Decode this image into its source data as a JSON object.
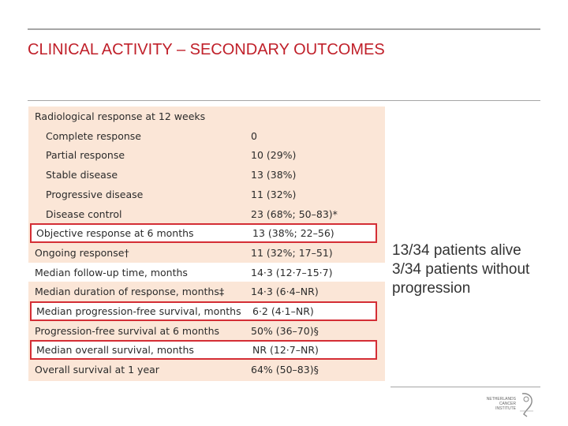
{
  "slide": {
    "title": "CLINICAL ACTIVITY – SECONDARY OUTCOMES"
  },
  "table": {
    "rows": [
      {
        "label": "Radiological response at 12 weeks",
        "value": ""
      },
      {
        "label": "Complete response",
        "value": "0"
      },
      {
        "label": "Partial response",
        "value": "10 (29%)"
      },
      {
        "label": "Stable disease",
        "value": "13 (38%)"
      },
      {
        "label": "Progressive disease",
        "value": "11 (32%)"
      },
      {
        "label": "Disease control",
        "value": "23 (68%; 50–83)*"
      },
      {
        "label": "Objective response at 6 months",
        "value": "13 (38%; 22–56)"
      },
      {
        "label": "Ongoing response†",
        "value": "11 (32%; 17–51)"
      },
      {
        "label": "Median follow-up time, months",
        "value": "14·3 (12·7–15·7)"
      },
      {
        "label": "Median duration of response, months‡",
        "value": "14·3 (6·4–NR)"
      },
      {
        "label": "Median progression-free survival, months",
        "value": "6·2 (4·1–NR)"
      },
      {
        "label": "Progression-free survival at 6 months",
        "value": "50% (36–70)§"
      },
      {
        "label": "Median overall survival, months",
        "value": "NR (12·7–NR)"
      },
      {
        "label": "Overall survival at 1 year",
        "value": "64% (50–83)§"
      }
    ]
  },
  "notes": {
    "line1": "13/34 patients alive",
    "line2": "3/34 patients without",
    "line3": "progression"
  },
  "logo": {
    "line1": "NETHERLANDS",
    "line2": "CANCER",
    "line3": "INSTITUTE",
    "icon": "nki-logo-icon"
  },
  "colors": {
    "title": "#c0202a",
    "highlight_border": "#d42e35",
    "table_bg": "#fbe6d7"
  }
}
